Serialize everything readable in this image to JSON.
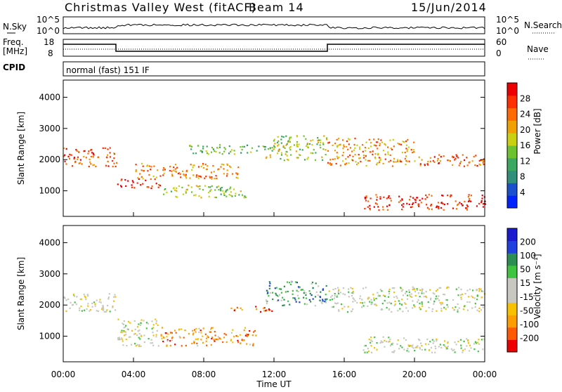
{
  "header": {
    "title": "Christmas Valley West (fitACF)",
    "beam": "Beam 14",
    "date": "15/Jun/2014"
  },
  "nsky": {
    "label": "N.Sky",
    "ticks": [
      "10^5",
      "10^0"
    ],
    "right_label": "N.Search",
    "right_ticks": [
      "10^5",
      "10^0"
    ]
  },
  "freq": {
    "label": "Freq.",
    "unit": "[MHz]",
    "ticks": [
      "18",
      "8"
    ],
    "right_label": "Nave",
    "right_ticks": [
      "60",
      "0"
    ]
  },
  "cpid": {
    "label": "CPID",
    "text": "normal (fast) 151 IF"
  },
  "colors": {
    "power": [
      "#0022ff",
      "#1a4fd0",
      "#2f8f7a",
      "#3aa860",
      "#6ec230",
      "#c8d010",
      "#f0a000",
      "#ff6a00",
      "#ff3000",
      "#ee0000"
    ],
    "velocity": [
      "#ee0000",
      "#ff5a00",
      "#ff9d00",
      "#f7c000",
      "#c8c8c0",
      "#c8c8c0",
      "#3ec43e",
      "#2a8f50",
      "#2040e0",
      "#1a1ad0"
    ]
  },
  "chart_data": [
    {
      "type": "heatmap",
      "name": "power",
      "ylabel": "Slant Range [km]",
      "ylim": [
        180,
        4550
      ],
      "yticks": [
        1000,
        2000,
        3000,
        4000
      ],
      "xlim": [
        0,
        24
      ],
      "colorbar": {
        "label": "Power [dB]",
        "ticks": [
          "28",
          "24",
          "20",
          "16",
          "12",
          "8",
          "4"
        ]
      },
      "features": [
        {
          "t0": 0.0,
          "t1": 3.0,
          "r0": 1800,
          "r1": 2400,
          "level": 0.8
        },
        {
          "t0": 3.0,
          "t1": 5.5,
          "r0": 1100,
          "r1": 1400,
          "level": 0.9
        },
        {
          "t0": 4.0,
          "t1": 10.0,
          "r0": 1400,
          "r1": 1900,
          "level": 0.7
        },
        {
          "t0": 5.5,
          "t1": 10.5,
          "r0": 800,
          "r1": 1200,
          "level": 0.5
        },
        {
          "t0": 7.0,
          "t1": 12.5,
          "r0": 2200,
          "r1": 2500,
          "level": 0.4
        },
        {
          "t0": 11.5,
          "t1": 15.0,
          "r0": 2000,
          "r1": 2800,
          "level": 0.5
        },
        {
          "t0": 15.0,
          "t1": 20.0,
          "r0": 1800,
          "r1": 2700,
          "level": 0.7
        },
        {
          "t0": 17.0,
          "t1": 24.0,
          "r0": 400,
          "r1": 900,
          "level": 0.9
        },
        {
          "t0": 20.0,
          "t1": 24.0,
          "r0": 1800,
          "r1": 2200,
          "level": 0.8
        }
      ]
    },
    {
      "type": "heatmap",
      "name": "velocity",
      "ylabel": "Slant Range [km]",
      "xlabel": "Time UT",
      "ylim": [
        180,
        4550
      ],
      "yticks": [
        1000,
        2000,
        3000,
        4000
      ],
      "xlim": [
        0,
        24
      ],
      "xticks": [
        "00:00",
        "04:00",
        "08:00",
        "12:00",
        "16:00",
        "20:00",
        "00:00"
      ],
      "colorbar": {
        "label": "Velocity [m s⁻¹]",
        "ticks": [
          "200",
          "100",
          "50",
          "15",
          "-15",
          "-50",
          "-100",
          "-200"
        ]
      },
      "features": [
        {
          "t0": 0.0,
          "t1": 3.0,
          "r0": 1800,
          "r1": 2400,
          "level": 0.5
        },
        {
          "t0": 3.0,
          "t1": 5.5,
          "r0": 700,
          "r1": 1600,
          "level": 0.5
        },
        {
          "t0": 5.5,
          "t1": 11.0,
          "r0": 700,
          "r1": 1300,
          "level": 0.25
        },
        {
          "t0": 9.5,
          "t1": 12.0,
          "r0": 1800,
          "r1": 2000,
          "level": 0.15
        },
        {
          "t0": 11.5,
          "t1": 15.0,
          "r0": 2000,
          "r1": 2800,
          "level": 0.7
        },
        {
          "t0": 15.0,
          "t1": 24.0,
          "r0": 1800,
          "r1": 2600,
          "level": 0.5
        },
        {
          "t0": 17.0,
          "t1": 24.0,
          "r0": 500,
          "r1": 1000,
          "level": 0.5
        }
      ]
    }
  ]
}
